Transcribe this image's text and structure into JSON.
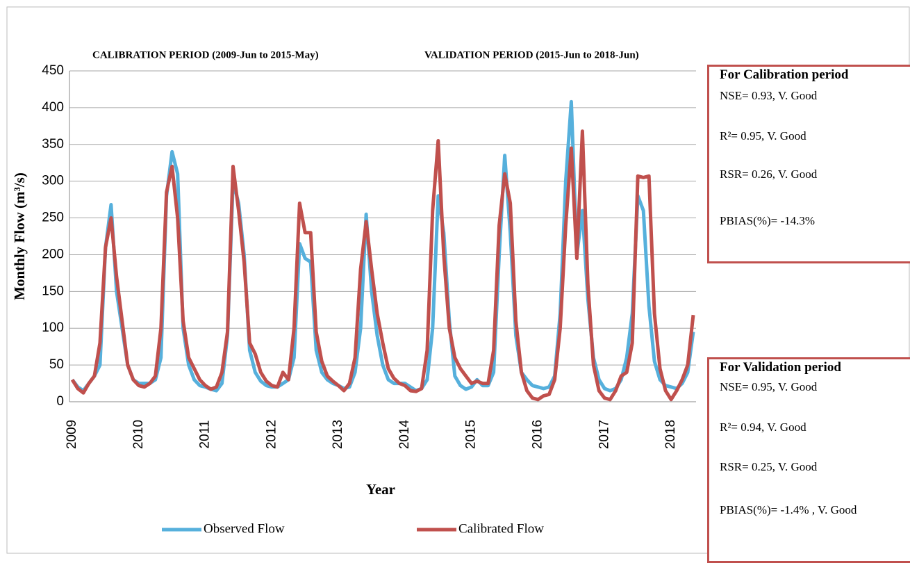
{
  "chart_data": {
    "type": "line",
    "period_labels": [
      "CALIBRATION  PERIOD  (2009-Jun to 2015-May)",
      "VALIDATION  PERIOD  (2015-Jun to 2018-Jun)"
    ],
    "x_label": "Year",
    "y_label": "Monthly Flow (m³/s)",
    "categories": [
      "2009",
      null,
      null,
      null,
      null,
      null,
      null,
      null,
      null,
      null,
      null,
      null,
      "2010",
      null,
      null,
      null,
      null,
      null,
      null,
      null,
      null,
      null,
      null,
      null,
      "2011",
      null,
      null,
      null,
      null,
      null,
      null,
      null,
      null,
      null,
      null,
      null,
      "2012",
      null,
      null,
      null,
      null,
      null,
      null,
      null,
      null,
      null,
      null,
      null,
      "2013",
      null,
      null,
      null,
      null,
      null,
      null,
      null,
      null,
      null,
      null,
      null,
      "2014",
      null,
      null,
      null,
      null,
      null,
      null,
      null,
      null,
      null,
      null,
      null,
      "2015",
      null,
      null,
      null,
      null,
      null,
      null,
      null,
      null,
      null,
      null,
      null,
      "2016",
      null,
      null,
      null,
      null,
      null,
      null,
      null,
      null,
      null,
      null,
      null,
      "2017",
      null,
      null,
      null,
      null,
      null,
      null,
      null,
      null,
      null,
      null,
      null,
      "2018",
      null,
      null,
      null,
      null
    ],
    "series": [
      {
        "name": "Observed Flow",
        "color": "#56b0dc",
        "values": [
          30,
          20,
          15,
          25,
          35,
          50,
          210,
          268,
          150,
          100,
          50,
          30,
          25,
          25,
          25,
          30,
          60,
          280,
          340,
          310,
          100,
          50,
          30,
          22,
          20,
          17,
          15,
          25,
          90,
          300,
          270,
          200,
          70,
          40,
          28,
          22,
          20,
          20,
          25,
          30,
          60,
          215,
          195,
          190,
          70,
          40,
          30,
          25,
          22,
          18,
          20,
          40,
          100,
          255,
          150,
          90,
          50,
          30,
          25,
          25,
          25,
          20,
          15,
          18,
          30,
          100,
          280,
          230,
          110,
          35,
          22,
          17,
          20,
          30,
          22,
          22,
          40,
          200,
          335,
          230,
          90,
          40,
          30,
          22,
          20,
          18,
          20,
          35,
          120,
          300,
          408,
          200,
          260,
          140,
          60,
          30,
          18,
          15,
          18,
          30,
          60,
          120,
          280,
          260,
          130,
          55,
          30,
          22,
          20,
          18,
          25,
          40,
          95
        ]
      },
      {
        "name": "Calibrated Flow",
        "color": "#c0504d",
        "values": [
          30,
          18,
          12,
          25,
          35,
          80,
          210,
          250,
          170,
          110,
          50,
          30,
          22,
          20,
          25,
          35,
          100,
          285,
          320,
          250,
          110,
          60,
          45,
          30,
          22,
          17,
          20,
          40,
          95,
          320,
          260,
          190,
          80,
          65,
          40,
          28,
          22,
          20,
          40,
          30,
          100,
          270,
          230,
          230,
          95,
          55,
          35,
          28,
          22,
          15,
          25,
          60,
          180,
          245,
          180,
          120,
          80,
          45,
          32,
          25,
          22,
          15,
          14,
          18,
          70,
          260,
          355,
          200,
          100,
          60,
          45,
          35,
          25,
          28,
          25,
          25,
          70,
          240,
          310,
          270,
          110,
          40,
          15,
          5,
          3,
          8,
          10,
          30,
          100,
          240,
          345,
          195,
          368,
          160,
          50,
          15,
          5,
          3,
          15,
          35,
          40,
          80,
          307,
          305,
          307,
          120,
          45,
          15,
          3,
          15,
          30,
          50,
          118
        ]
      }
    ],
    "ylim": [
      0,
      450
    ],
    "yticks": [
      0,
      50,
      100,
      150,
      200,
      250,
      300,
      350,
      400,
      450
    ],
    "grid": true,
    "legend": "bottom",
    "annotations": [
      {
        "title": "For Calibration period",
        "lines": [
          "NSE= 0.93, V. Good",
          "R²= 0.95, V. Good",
          "RSR= 0.26,  V. Good",
          "PBIAS(%)= -14.3%"
        ]
      },
      {
        "title": "For Validation period",
        "lines": [
          "NSE= 0.95, V. Good",
          "R²= 0.94, V. Good",
          "RSR= 0.25,  V. Good",
          "PBIAS(%)= -1.4% , V. Good"
        ]
      }
    ]
  }
}
